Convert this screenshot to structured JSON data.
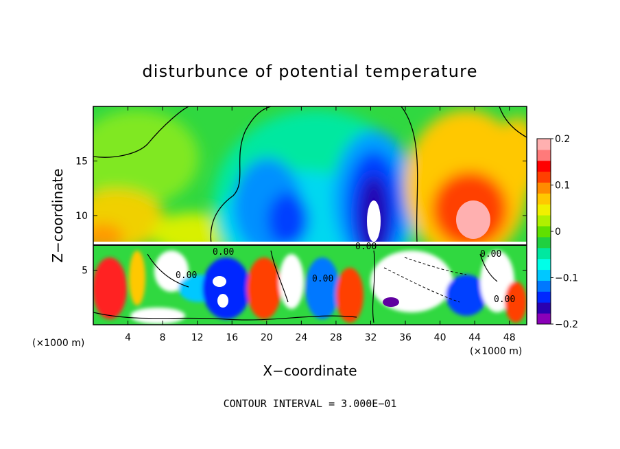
{
  "chart_data": {
    "type": "heatmap",
    "title": "disturbunce of potential temperature",
    "xlabel": "X−coordinate",
    "ylabel": "Z−coordinate",
    "x_unit": "(×1000 m)",
    "x_unit_right": "(×1000 m)",
    "xlim": [
      0,
      50
    ],
    "ylim": [
      0,
      20
    ],
    "x_ticks": [
      4,
      8,
      12,
      16,
      20,
      24,
      28,
      32,
      36,
      40,
      44,
      48
    ],
    "y_ticks": [
      5,
      10,
      15
    ],
    "colorbar": {
      "range": [
        -0.2,
        0.2
      ],
      "ticks": [
        {
          "value": 0.2,
          "label": "0.2"
        },
        {
          "value": 0.1,
          "label": "0.1"
        },
        {
          "value": 0,
          "label": "0"
        },
        {
          "value": -0.1,
          "label": "−0.1"
        },
        {
          "value": -0.2,
          "label": "−0.2"
        }
      ],
      "colors": [
        "#8a00b8",
        "#2a00b0",
        "#0028ff",
        "#0078ff",
        "#00c8ff",
        "#00ffe8",
        "#00e8a0",
        "#20d040",
        "#60e000",
        "#b0f000",
        "#f0f000",
        "#ffc800",
        "#ff8c00",
        "#ff4000",
        "#ff0000",
        "#ff7a7a",
        "#ffb0b0"
      ]
    },
    "contour_labels": [
      "0.00",
      "0.00",
      "0.00",
      "0.00",
      "0.00",
      "0.00"
    ],
    "annotation": "CONTOUR INTERVAL = 3.000E−01",
    "grid": false
  }
}
